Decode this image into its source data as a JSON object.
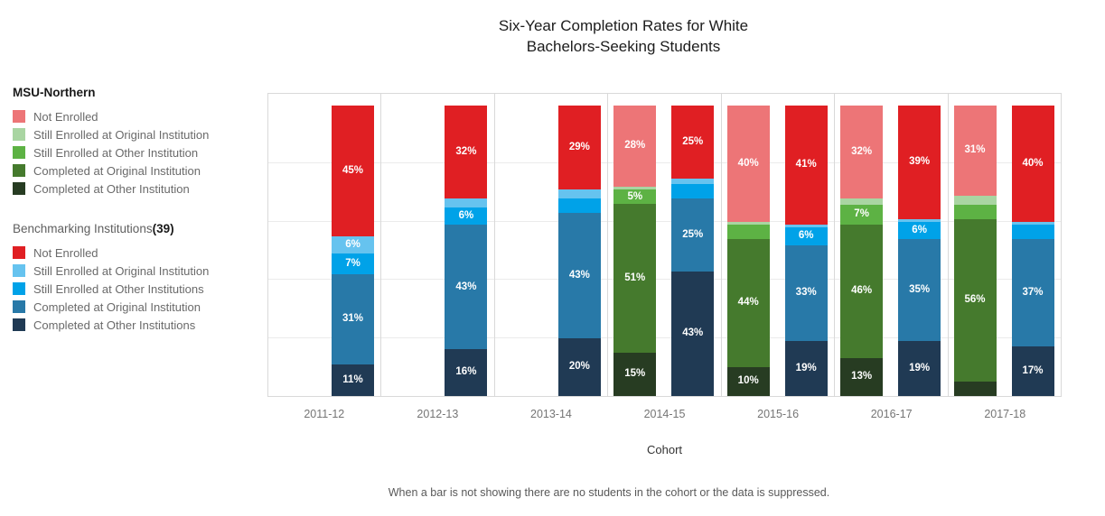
{
  "title": {
    "line1": "Six-Year Completion Rates for White",
    "line2": "Bachelors-Seeking Students"
  },
  "footnote": "When a bar is not showing there are no students in the cohort or the data is suppressed.",
  "legend": {
    "groups": [
      {
        "heading": "MSU-Northern",
        "heading_count": "",
        "items": [
          {
            "label": "Not Enrolled",
            "color": "#ED7577"
          },
          {
            "label": "Still Enrolled at Original Institution",
            "color": "#A9D5A2"
          },
          {
            "label": "Still Enrolled at Other Institution",
            "color": "#5DB244"
          },
          {
            "label": "Completed at Original Institution",
            "color": "#457A2D"
          },
          {
            "label": "Completed at Other Institution",
            "color": "#273C22"
          }
        ]
      },
      {
        "heading": "Benchmarking Institutions",
        "heading_count": "(39)",
        "items": [
          {
            "label": "Not Enrolled",
            "color": "#E01F23"
          },
          {
            "label": "Still Enrolled at Original Institution",
            "color": "#66C3EF"
          },
          {
            "label": "Still Enrolled at Other Institutions",
            "color": "#00A2E8"
          },
          {
            "label": "Completed at Original Institution",
            "color": "#2879A8"
          },
          {
            "label": "Completed at Other Institutions",
            "color": "#203A54"
          }
        ]
      }
    ]
  },
  "chart_data": {
    "type": "bar",
    "stacked": true,
    "value_format": "percent",
    "title": "Six-Year Completion Rates for White Bachelors-Seeking Students",
    "xlabel": "Cohort",
    "ylim": [
      0,
      100
    ],
    "grid": true,
    "gridlines_percent": [
      20,
      40,
      60,
      80
    ],
    "legend_position": "left",
    "categories": [
      "2011-12",
      "2012-13",
      "2013-14",
      "2014-15",
      "2015-16",
      "2016-17",
      "2017-18"
    ],
    "groups": [
      {
        "name": "MSU-Northern",
        "bar_slot": "left",
        "segments": [
          {
            "name": "Completed at Other Institution",
            "color": "#273C22",
            "values": [
              null,
              null,
              null,
              15,
              10,
              13,
              5
            ],
            "value_labels": [
              "",
              "",
              "",
              "15%",
              "10%",
              "13%",
              ""
            ]
          },
          {
            "name": "Completed at Original Institution",
            "color": "#457A2D",
            "values": [
              null,
              null,
              null,
              51,
              44,
              46,
              56
            ],
            "value_labels": [
              "",
              "",
              "",
              "51%",
              "44%",
              "46%",
              "56%"
            ]
          },
          {
            "name": "Still Enrolled at Other Institution",
            "color": "#5DB244",
            "values": [
              null,
              null,
              null,
              5,
              5,
              7,
              5
            ],
            "value_labels": [
              "",
              "",
              "",
              "5%",
              "",
              "7%",
              ""
            ]
          },
          {
            "name": "Still Enrolled at Original Institution",
            "color": "#A9D5A2",
            "values": [
              null,
              null,
              null,
              1,
              1,
              2,
              3
            ],
            "value_labels": [
              "",
              "",
              "",
              "",
              "",
              "",
              ""
            ]
          },
          {
            "name": "Not Enrolled",
            "color": "#ED7577",
            "values": [
              null,
              null,
              null,
              28,
              40,
              32,
              31
            ],
            "value_labels": [
              "",
              "",
              "",
              "28%",
              "40%",
              "32%",
              "31%"
            ]
          }
        ]
      },
      {
        "name": "Benchmarking Institutions(39)",
        "bar_slot": "right",
        "segments": [
          {
            "name": "Completed at Other Institutions",
            "color": "#203A54",
            "values": [
              11,
              16,
              20,
              43,
              19,
              19,
              17
            ],
            "value_labels": [
              "11%",
              "16%",
              "20%",
              "43%",
              "19%",
              "19%",
              "17%"
            ]
          },
          {
            "name": "Completed at Original Institution",
            "color": "#2879A8",
            "values": [
              31,
              43,
              43,
              25,
              33,
              35,
              37
            ],
            "value_labels": [
              "31%",
              "43%",
              "43%",
              "25%",
              "33%",
              "35%",
              "37%"
            ]
          },
          {
            "name": "Still Enrolled at Other Institutions",
            "color": "#00A2E8",
            "values": [
              7,
              6,
              5,
              5,
              6,
              6,
              5
            ],
            "value_labels": [
              "7%",
              "6%",
              "",
              "",
              "6%",
              "6%",
              ""
            ]
          },
          {
            "name": "Still Enrolled at Original Institution",
            "color": "#66C3EF",
            "values": [
              6,
              3,
              3,
              2,
              1,
              1,
              1
            ],
            "value_labels": [
              "6%",
              "",
              "",
              "",
              "",
              "",
              ""
            ]
          },
          {
            "name": "Not Enrolled",
            "color": "#E01F23",
            "values": [
              45,
              32,
              29,
              25,
              41,
              39,
              40
            ],
            "value_labels": [
              "45%",
              "32%",
              "29%",
              "25%",
              "41%",
              "39%",
              "40%"
            ]
          }
        ]
      }
    ]
  }
}
